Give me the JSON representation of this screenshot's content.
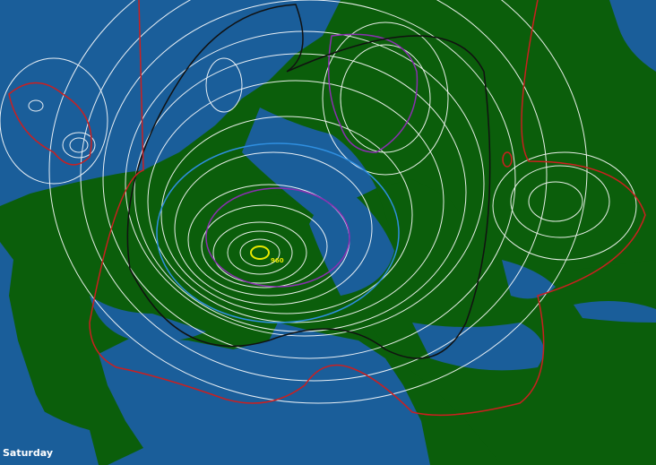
{
  "map": {
    "day_label": "Saturday",
    "low_center_label": "960",
    "colors": {
      "ocean": "#1a5e9a",
      "land": "#0b5e0b",
      "isobar": "#ffffff",
      "contour_1000": "#111111",
      "contour_1020": "#cc1f1f",
      "contour_980": "#8a2fb0",
      "contour_990": "#2f8fe0",
      "low_center": "#e8e800"
    }
  }
}
